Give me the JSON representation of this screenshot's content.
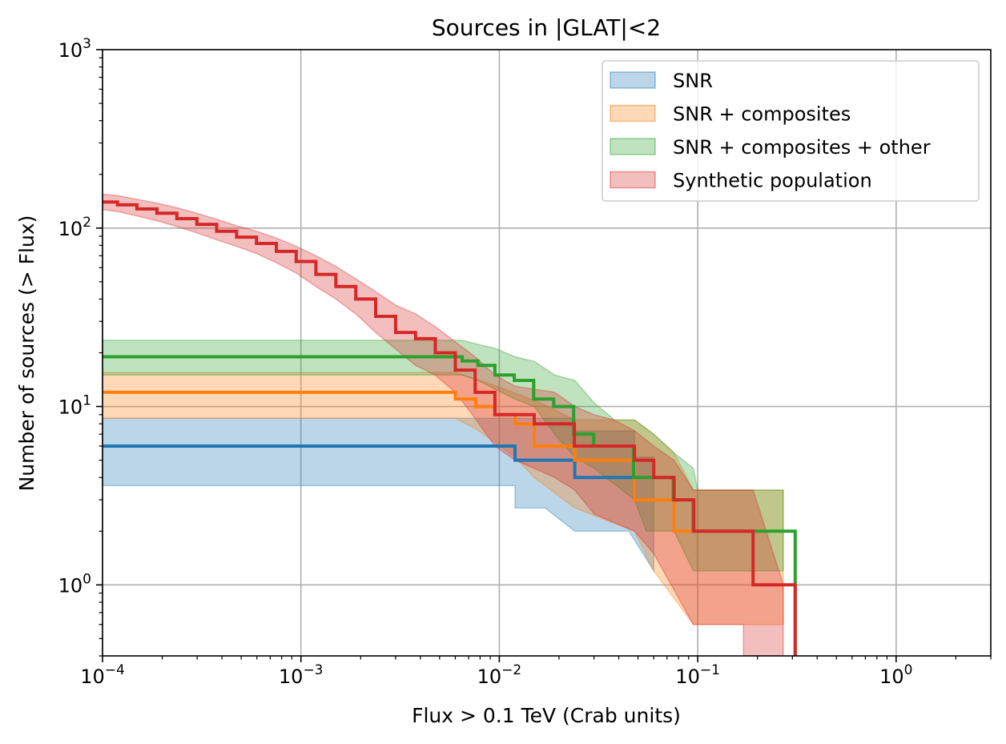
{
  "chart_data": {
    "type": "step",
    "title": "Sources in |GLAT|<2",
    "xlabel": "Flux > 0.1 TeV (Crab units)",
    "ylabel": "Number of sources (> Flux)",
    "xscale": "log",
    "yscale": "log",
    "xlim": [
      0.0001,
      3
    ],
    "ylim": [
      0.4,
      1000
    ],
    "x_ticks": [
      {
        "value": 0.0001,
        "base": "10",
        "exp": "−4"
      },
      {
        "value": 0.001,
        "base": "10",
        "exp": "−3"
      },
      {
        "value": 0.01,
        "base": "10",
        "exp": "−2"
      },
      {
        "value": 0.1,
        "base": "10",
        "exp": "−1"
      },
      {
        "value": 1,
        "base": "10",
        "exp": "0"
      }
    ],
    "y_ticks": [
      {
        "value": 1,
        "base": "10",
        "exp": "0"
      },
      {
        "value": 10,
        "base": "10",
        "exp": "1"
      },
      {
        "value": 100,
        "base": "10",
        "exp": "2"
      },
      {
        "value": 1000,
        "base": "10",
        "exp": "3"
      }
    ],
    "grid": true,
    "legend_position": "top-right",
    "series": [
      {
        "name": "SNR",
        "color": "#1f77b4",
        "line": [
          [
            0.0001,
            6
          ],
          [
            0.012,
            6
          ],
          [
            0.012,
            5
          ],
          [
            0.024,
            5
          ],
          [
            0.024,
            4
          ],
          [
            0.048,
            4
          ],
          [
            0.048,
            3
          ]
        ],
        "band_upper": [
          [
            0.0001,
            8.6
          ],
          [
            0.024,
            8.6
          ],
          [
            0.024,
            7.3
          ],
          [
            0.048,
            7.3
          ],
          [
            0.048,
            5.2
          ],
          [
            0.06,
            5.2
          ]
        ],
        "band_lower": [
          [
            0.0001,
            3.6
          ],
          [
            0.012,
            3.6
          ],
          [
            0.012,
            2.7
          ],
          [
            0.017,
            2.7
          ],
          [
            0.024,
            2.0
          ],
          [
            0.045,
            2.0
          ],
          [
            0.06,
            1.2
          ]
        ]
      },
      {
        "name": "SNR + composites",
        "color": "#ff7f0e",
        "line": [
          [
            0.0001,
            12
          ],
          [
            0.006,
            12
          ],
          [
            0.006,
            11
          ],
          [
            0.0076,
            11
          ],
          [
            0.0076,
            10
          ],
          [
            0.0095,
            10
          ],
          [
            0.0095,
            9
          ],
          [
            0.012,
            9
          ],
          [
            0.012,
            8
          ],
          [
            0.015,
            8
          ],
          [
            0.015,
            6
          ],
          [
            0.024,
            6
          ],
          [
            0.024,
            5
          ],
          [
            0.048,
            5
          ],
          [
            0.048,
            3
          ],
          [
            0.076,
            3
          ],
          [
            0.076,
            2
          ],
          [
            0.095,
            2
          ]
        ],
        "band_upper": [
          [
            0.0001,
            15.5
          ],
          [
            0.006,
            15.5
          ],
          [
            0.0076,
            14.3
          ],
          [
            0.0095,
            13.1
          ],
          [
            0.012,
            11.9
          ],
          [
            0.015,
            10.8
          ],
          [
            0.019,
            9.6
          ],
          [
            0.024,
            8.4
          ],
          [
            0.048,
            8.4
          ],
          [
            0.06,
            7.0
          ],
          [
            0.076,
            5.5
          ],
          [
            0.095,
            3.4
          ],
          [
            0.27,
            3.4
          ]
        ],
        "band_lower": [
          [
            0.0001,
            8.6
          ],
          [
            0.006,
            8.6
          ],
          [
            0.0076,
            7.5
          ],
          [
            0.0095,
            6.3
          ],
          [
            0.012,
            5.2
          ],
          [
            0.015,
            4.0
          ],
          [
            0.024,
            2.7
          ],
          [
            0.048,
            2.0
          ],
          [
            0.06,
            1.2
          ],
          [
            0.095,
            0.6
          ],
          [
            0.27,
            0.6
          ]
        ]
      },
      {
        "name": "SNR + composites + other",
        "color": "#2ca02c",
        "line": [
          [
            0.0001,
            19
          ],
          [
            0.0065,
            19
          ],
          [
            0.0065,
            18
          ],
          [
            0.0078,
            18
          ],
          [
            0.0078,
            17
          ],
          [
            0.0095,
            17
          ],
          [
            0.0095,
            15
          ],
          [
            0.0119,
            15
          ],
          [
            0.0119,
            14
          ],
          [
            0.0149,
            14
          ],
          [
            0.0149,
            11
          ],
          [
            0.0188,
            11
          ],
          [
            0.0188,
            10
          ],
          [
            0.0237,
            10
          ],
          [
            0.0237,
            7
          ],
          [
            0.0299,
            7
          ],
          [
            0.0299,
            6
          ],
          [
            0.0475,
            6
          ],
          [
            0.0475,
            4
          ],
          [
            0.0753,
            4
          ],
          [
            0.0753,
            3
          ],
          [
            0.0948,
            3
          ],
          [
            0.0948,
            2
          ],
          [
            0.31,
            2
          ],
          [
            0.31,
            0.4
          ]
        ],
        "band_upper": [
          [
            0.0001,
            23.5
          ],
          [
            0.0065,
            23.5
          ],
          [
            0.0078,
            22.3
          ],
          [
            0.0095,
            21.2
          ],
          [
            0.012,
            19.0
          ],
          [
            0.015,
            17.9
          ],
          [
            0.019,
            15.0
          ],
          [
            0.024,
            14.0
          ],
          [
            0.03,
            10.5
          ],
          [
            0.038,
            8.4
          ],
          [
            0.048,
            8.4
          ],
          [
            0.06,
            7.0
          ],
          [
            0.076,
            5.5
          ],
          [
            0.095,
            4.5
          ],
          [
            0.1,
            3.4
          ],
          [
            0.27,
            3.4
          ]
        ],
        "band_lower": [
          [
            0.0001,
            15.0
          ],
          [
            0.0065,
            15.0
          ],
          [
            0.0078,
            14.0
          ],
          [
            0.0095,
            12.5
          ],
          [
            0.012,
            11.0
          ],
          [
            0.015,
            10.0
          ],
          [
            0.019,
            7.0
          ],
          [
            0.024,
            5.2
          ],
          [
            0.03,
            4.5
          ],
          [
            0.048,
            3.0
          ],
          [
            0.055,
            2.0
          ],
          [
            0.076,
            2.0
          ],
          [
            0.095,
            1.2
          ],
          [
            0.27,
            1.2
          ]
        ]
      },
      {
        "name": "Synthetic population",
        "color": "#d62728",
        "line": [
          [
            0.0001,
            140
          ],
          [
            0.000119,
            140
          ],
          [
            0.000119,
            135
          ],
          [
            0.000149,
            135
          ],
          [
            0.000149,
            128
          ],
          [
            0.000188,
            128
          ],
          [
            0.000188,
            121
          ],
          [
            0.000237,
            121
          ],
          [
            0.000237,
            113
          ],
          [
            0.000299,
            113
          ],
          [
            0.000299,
            105
          ],
          [
            0.000376,
            105
          ],
          [
            0.000376,
            96
          ],
          [
            0.000474,
            96
          ],
          [
            0.000474,
            89
          ],
          [
            0.000597,
            89
          ],
          [
            0.000597,
            82
          ],
          [
            0.000752,
            82
          ],
          [
            0.000752,
            74
          ],
          [
            0.000947,
            74
          ],
          [
            0.000947,
            65
          ],
          [
            0.00119,
            65
          ],
          [
            0.00119,
            55
          ],
          [
            0.0015,
            55
          ],
          [
            0.0015,
            47
          ],
          [
            0.00189,
            47
          ],
          [
            0.00189,
            40
          ],
          [
            0.00238,
            40
          ],
          [
            0.00238,
            32
          ],
          [
            0.003,
            32
          ],
          [
            0.003,
            26
          ],
          [
            0.00378,
            26
          ],
          [
            0.00378,
            24
          ],
          [
            0.00476,
            24
          ],
          [
            0.00476,
            20
          ],
          [
            0.006,
            20
          ],
          [
            0.006,
            16
          ],
          [
            0.00755,
            16
          ],
          [
            0.00755,
            12
          ],
          [
            0.0095,
            12
          ],
          [
            0.0095,
            9
          ],
          [
            0.015,
            9
          ],
          [
            0.015,
            8
          ],
          [
            0.0239,
            8
          ],
          [
            0.0239,
            6
          ],
          [
            0.048,
            6
          ],
          [
            0.048,
            5
          ],
          [
            0.06,
            5
          ],
          [
            0.06,
            4
          ],
          [
            0.076,
            4
          ],
          [
            0.076,
            3
          ],
          [
            0.0955,
            3
          ],
          [
            0.0955,
            2
          ],
          [
            0.19,
            2
          ],
          [
            0.19,
            1
          ],
          [
            0.31,
            1
          ],
          [
            0.31,
            0.4
          ]
        ],
        "band_upper": [
          [
            0.0001,
            155
          ],
          [
            0.000119,
            152
          ],
          [
            0.000149,
            145
          ],
          [
            0.000188,
            138
          ],
          [
            0.000237,
            130
          ],
          [
            0.000299,
            121
          ],
          [
            0.000376,
            112
          ],
          [
            0.000474,
            103
          ],
          [
            0.000597,
            96
          ],
          [
            0.000752,
            88
          ],
          [
            0.000947,
            79
          ],
          [
            0.00119,
            70
          ],
          [
            0.0015,
            61
          ],
          [
            0.00189,
            52
          ],
          [
            0.00238,
            44
          ],
          [
            0.003,
            37
          ],
          [
            0.00378,
            33
          ],
          [
            0.00476,
            28
          ],
          [
            0.006,
            23
          ],
          [
            0.00755,
            19
          ],
          [
            0.0095,
            15
          ],
          [
            0.012,
            13
          ],
          [
            0.015,
            12.5
          ],
          [
            0.019,
            12
          ],
          [
            0.024,
            10
          ],
          [
            0.03,
            9
          ],
          [
            0.038,
            8.4
          ],
          [
            0.048,
            7.3
          ],
          [
            0.06,
            6
          ],
          [
            0.076,
            5
          ],
          [
            0.095,
            3.4
          ],
          [
            0.19,
            3.4
          ],
          [
            0.27,
            1.0
          ]
        ],
        "band_lower": [
          [
            0.0001,
            127
          ],
          [
            0.000119,
            124
          ],
          [
            0.000149,
            117
          ],
          [
            0.000188,
            110
          ],
          [
            0.000237,
            102
          ],
          [
            0.000299,
            94
          ],
          [
            0.000376,
            86
          ],
          [
            0.000474,
            79
          ],
          [
            0.000597,
            72
          ],
          [
            0.000752,
            64
          ],
          [
            0.000947,
            56
          ],
          [
            0.00119,
            47
          ],
          [
            0.0015,
            40
          ],
          [
            0.00189,
            33
          ],
          [
            0.00238,
            26
          ],
          [
            0.003,
            21
          ],
          [
            0.00378,
            17
          ],
          [
            0.00476,
            15
          ],
          [
            0.006,
            12
          ],
          [
            0.00755,
            8.6
          ],
          [
            0.0095,
            6
          ],
          [
            0.012,
            5
          ],
          [
            0.015,
            4.5
          ],
          [
            0.019,
            4
          ],
          [
            0.024,
            3.4
          ],
          [
            0.03,
            2.5
          ],
          [
            0.048,
            2.0
          ],
          [
            0.06,
            1.5
          ],
          [
            0.095,
            0.6
          ],
          [
            0.17,
            0.6
          ],
          [
            0.17,
            0.4
          ],
          [
            0.27,
            0.4
          ]
        ]
      }
    ]
  }
}
